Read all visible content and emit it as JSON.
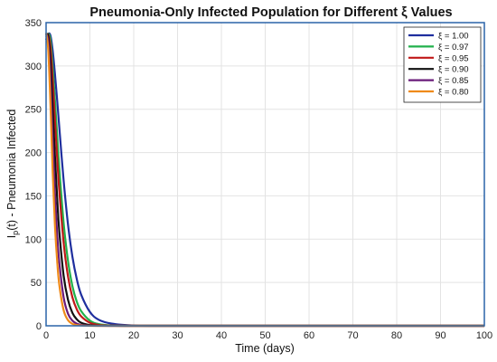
{
  "chart_data": {
    "type": "line",
    "title": "Pneumonia-Only Infected Population for Different ξ Values",
    "xlabel": "Time (days)",
    "ylabel_main": "I",
    "ylabel_sub": "p",
    "ylabel_rest": "(t) - Pneumonia Infected",
    "xlim": [
      0,
      100
    ],
    "ylim": [
      0,
      350
    ],
    "xticks": [
      0,
      10,
      20,
      30,
      40,
      50,
      60,
      70,
      80,
      90,
      100
    ],
    "yticks": [
      0,
      50,
      100,
      150,
      200,
      250,
      300,
      350
    ],
    "grid": true,
    "legend_position": "top-right",
    "x": [
      0,
      0.5,
      1,
      1.5,
      2,
      2.5,
      3,
      4,
      5,
      6,
      7,
      8,
      10,
      12,
      15,
      20,
      25,
      30,
      50,
      100
    ],
    "series": [
      {
        "name": "ξ = 1.00",
        "color": "#1f2f9e",
        "values": [
          330,
          337,
          335,
          318,
          292,
          262,
          230,
          168,
          117,
          80,
          54,
          36,
          16,
          7,
          2.5,
          0.3,
          0,
          0,
          0,
          0
        ]
      },
      {
        "name": "ξ = 0.97",
        "color": "#22b14c",
        "values": [
          333,
          337,
          330,
          300,
          262,
          222,
          183,
          119,
          75,
          46,
          28,
          17,
          6,
          2,
          0.4,
          0,
          0,
          0,
          0,
          0
        ]
      },
      {
        "name": "ξ = 0.95",
        "color": "#c01818",
        "values": [
          335,
          336,
          322,
          285,
          240,
          196,
          157,
          96,
          57,
          33,
          19,
          11,
          3.5,
          1,
          0.2,
          0,
          0,
          0,
          0,
          0
        ]
      },
      {
        "name": "ξ = 0.90",
        "color": "#111111",
        "values": [
          336,
          334,
          305,
          252,
          198,
          150,
          110,
          58,
          30,
          15,
          7.5,
          3.5,
          0.8,
          0.2,
          0,
          0,
          0,
          0,
          0,
          0
        ]
      },
      {
        "name": "ξ = 0.85",
        "color": "#6a1b7a",
        "values": [
          337,
          328,
          282,
          215,
          155,
          108,
          74,
          33,
          14,
          6,
          2.5,
          1,
          0.2,
          0,
          0,
          0,
          0,
          0,
          0,
          0
        ]
      },
      {
        "name": "ξ = 0.80",
        "color": "#ef8a1a",
        "values": [
          338,
          318,
          255,
          178,
          118,
          77,
          48,
          18,
          6.5,
          2.3,
          0.8,
          0.3,
          0,
          0,
          0,
          0,
          0,
          0,
          0,
          0
        ]
      }
    ]
  }
}
